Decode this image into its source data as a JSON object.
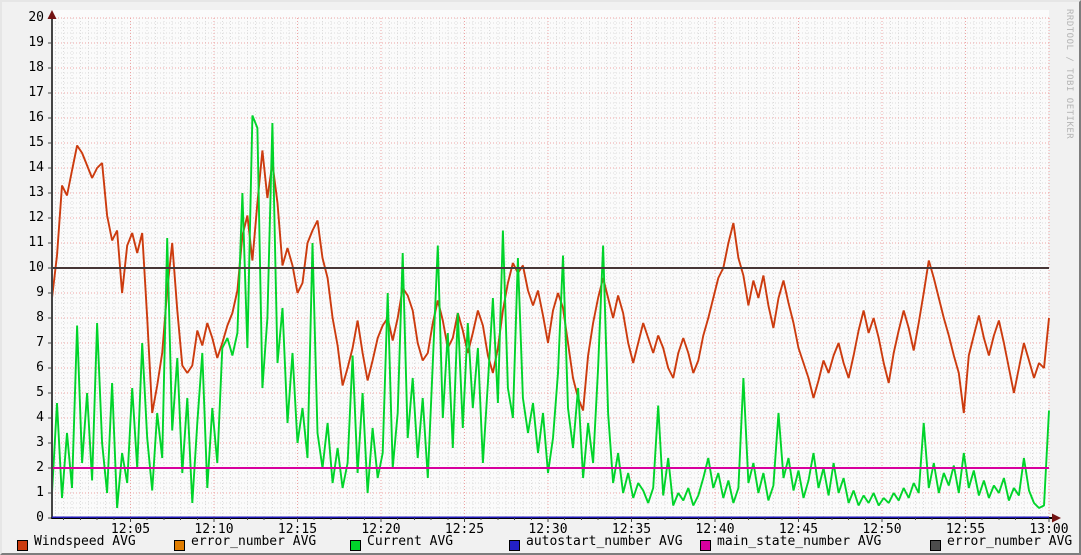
{
  "watermark": "RRDTOOL / TOBI OETIKER",
  "colors": {
    "background": "#f1f1f1",
    "plot_background": "#fbfbfb",
    "axis": "#444444",
    "x_axis_line": "#000000",
    "arrow": "#731414",
    "grid_minor": "#dcdcdc",
    "grid_major": "#eda4a4",
    "windspeed": "#cc3b0e",
    "error_number_orange": "#e07d00",
    "current": "#00d42a",
    "autostart_number": "#2320c5",
    "main_state_number": "#d8009e",
    "error_number_gray": "#4d4d4d",
    "hrule_dark": "#473636"
  },
  "legend": {
    "items": [
      {
        "label": "Windspeed AVG",
        "color": "#cc3b0e"
      },
      {
        "label": "error_number AVG",
        "color": "#e07d00"
      },
      {
        "label": "Current AVG",
        "color": "#00d42a"
      },
      {
        "label": "autostart_number AVG",
        "color": "#2320c5"
      },
      {
        "label": "main_state_number AVG",
        "color": "#d8009e"
      },
      {
        "label": "error_number AVG",
        "color": "#4d4d4d"
      }
    ]
  },
  "chart_data": {
    "type": "line",
    "x_axis": {
      "start_min": 0.3,
      "step_min": 0.3,
      "end_min": 60,
      "tick_minutes": [
        5,
        10,
        15,
        20,
        25,
        30,
        35,
        40,
        45,
        50,
        55,
        60
      ],
      "tick_labels": [
        "12:05",
        "12:10",
        "12:15",
        "12:20",
        "12:25",
        "12:30",
        "12:35",
        "12:40",
        "12:45",
        "12:50",
        "12:55",
        "13:00"
      ],
      "minor_step_min": 0.5,
      "major_step_min": 5
    },
    "y_axis": {
      "min": 0,
      "max": 20,
      "tick_step": 1,
      "minor_step": 0.2,
      "tick_labels": [
        "0",
        "1",
        "2",
        "3",
        "4",
        "5",
        "6",
        "7",
        "8",
        "9",
        "10",
        "11",
        "12",
        "13",
        "14",
        "15",
        "16",
        "17",
        "18",
        "19",
        "20"
      ]
    },
    "grid": {
      "major_on": true,
      "minor_on": true,
      "style": "dotted"
    },
    "legend_position": "bottom",
    "series": [
      {
        "name": "Windspeed AVG",
        "color": "#cc3b0e",
        "values": [
          8.8,
          10.5,
          13.3,
          12.9,
          13.9,
          14.9,
          14.6,
          14.1,
          13.6,
          14.0,
          14.2,
          12.1,
          11.1,
          11.5,
          9.0,
          10.9,
          11.4,
          10.6,
          11.4,
          8.0,
          4.2,
          5.3,
          6.6,
          9.1,
          11.0,
          8.3,
          6.1,
          5.8,
          6.1,
          7.5,
          6.9,
          7.8,
          7.2,
          6.4,
          7.0,
          7.7,
          8.2,
          9.1,
          11.3,
          12.1,
          10.3,
          12.6,
          14.7,
          12.8,
          14.2,
          12.6,
          10.1,
          10.8,
          10.1,
          9.0,
          9.4,
          11.0,
          11.5,
          11.9,
          10.4,
          9.6,
          8.0,
          6.9,
          5.3,
          6.0,
          6.8,
          7.9,
          6.6,
          5.5,
          6.3,
          7.2,
          7.7,
          8.0,
          7.1,
          8.0,
          9.2,
          8.9,
          8.3,
          7.0,
          6.3,
          6.6,
          7.8,
          8.7,
          7.9,
          6.8,
          7.2,
          8.2,
          7.5,
          6.6,
          7.4,
          8.3,
          7.7,
          6.5,
          5.8,
          6.8,
          8.3,
          9.4,
          10.2,
          9.8,
          10.1,
          9.1,
          8.5,
          9.1,
          8.1,
          7.0,
          8.3,
          9.0,
          8.4,
          7.0,
          5.6,
          4.8,
          4.3,
          6.5,
          7.8,
          8.8,
          9.6,
          8.8,
          8.0,
          8.9,
          8.2,
          7.0,
          6.2,
          7.0,
          7.8,
          7.2,
          6.6,
          7.3,
          6.8,
          6.0,
          5.6,
          6.6,
          7.2,
          6.6,
          5.8,
          6.3,
          7.3,
          8.0,
          8.8,
          9.6,
          10.0,
          11.0,
          11.8,
          10.4,
          9.7,
          8.5,
          9.5,
          8.8,
          9.7,
          8.5,
          7.6,
          8.8,
          9.5,
          8.6,
          7.8,
          6.8,
          6.2,
          5.6,
          4.8,
          5.5,
          6.3,
          5.8,
          6.5,
          7.0,
          6.2,
          5.6,
          6.5,
          7.5,
          8.3,
          7.4,
          8.0,
          7.2,
          6.2,
          5.4,
          6.6,
          7.5,
          8.3,
          7.6,
          6.7,
          7.8,
          9.0,
          10.3,
          9.6,
          8.8,
          8.0,
          7.3,
          6.5,
          5.8,
          4.2,
          6.5,
          7.3,
          8.1,
          7.2,
          6.5,
          7.3,
          7.9,
          7.0,
          6.0,
          5.0,
          6.0,
          7.0,
          6.3,
          5.6,
          6.2,
          6.0,
          8.0
        ]
      },
      {
        "name": "Current AVG",
        "color": "#00d42a",
        "values": [
          1.0,
          4.6,
          0.8,
          3.4,
          1.2,
          7.7,
          2.2,
          5.0,
          1.5,
          7.8,
          3.0,
          1.0,
          5.4,
          0.4,
          2.6,
          1.4,
          5.2,
          2.0,
          7.0,
          3.2,
          1.1,
          4.2,
          2.4,
          11.2,
          3.5,
          6.4,
          1.8,
          4.8,
          0.6,
          3.8,
          6.6,
          1.2,
          4.4,
          2.2,
          6.8,
          7.2,
          6.5,
          7.4,
          13.0,
          6.8,
          16.1,
          15.6,
          5.2,
          8.0,
          15.8,
          6.2,
          8.4,
          3.8,
          6.6,
          3.0,
          4.4,
          2.4,
          11.0,
          3.4,
          2.0,
          3.8,
          1.4,
          2.8,
          1.2,
          2.2,
          6.5,
          1.8,
          5.0,
          1.0,
          3.6,
          1.6,
          2.6,
          9.0,
          2.0,
          4.2,
          10.6,
          3.2,
          5.6,
          2.4,
          4.8,
          1.6,
          6.2,
          10.9,
          4.0,
          7.4,
          2.8,
          8.2,
          3.6,
          7.8,
          4.4,
          6.8,
          2.2,
          5.4,
          8.8,
          4.6,
          11.5,
          5.2,
          4.0,
          10.4,
          4.8,
          3.4,
          4.6,
          2.6,
          4.2,
          1.8,
          3.2,
          5.8,
          10.5,
          4.4,
          2.8,
          5.2,
          1.6,
          3.8,
          2.2,
          6.0,
          10.9,
          4.2,
          1.4,
          2.6,
          1.0,
          1.8,
          0.8,
          1.4,
          1.1,
          0.6,
          1.2,
          4.5,
          0.9,
          2.4,
          0.5,
          1.0,
          0.7,
          1.2,
          0.5,
          0.9,
          1.6,
          2.4,
          1.2,
          1.8,
          0.8,
          1.5,
          0.6,
          1.2,
          5.6,
          1.4,
          2.2,
          1.0,
          1.8,
          0.7,
          1.3,
          4.2,
          1.6,
          2.4,
          1.1,
          1.9,
          0.8,
          1.5,
          2.6,
          1.2,
          2.0,
          0.9,
          2.2,
          1.0,
          1.6,
          0.6,
          1.1,
          0.5,
          0.9,
          0.6,
          1.0,
          0.5,
          0.8,
          0.6,
          1.0,
          0.7,
          1.2,
          0.8,
          1.4,
          1.0,
          3.8,
          1.2,
          2.2,
          1.0,
          1.8,
          1.3,
          2.1,
          1.0,
          2.6,
          1.2,
          1.9,
          0.9,
          1.5,
          0.8,
          1.3,
          1.0,
          1.6,
          0.7,
          1.2,
          0.9,
          2.4,
          1.1,
          0.6,
          0.4,
          0.5,
          4.3
        ]
      }
    ],
    "hlines": [
      {
        "name": "error_number AVG",
        "value": 10,
        "color": "#473636"
      },
      {
        "name": "main_state_number AVG",
        "value": 2,
        "color": "#d8009e"
      },
      {
        "name": "autostart_number AVG",
        "value": 0,
        "color": "#2119b8"
      }
    ]
  }
}
